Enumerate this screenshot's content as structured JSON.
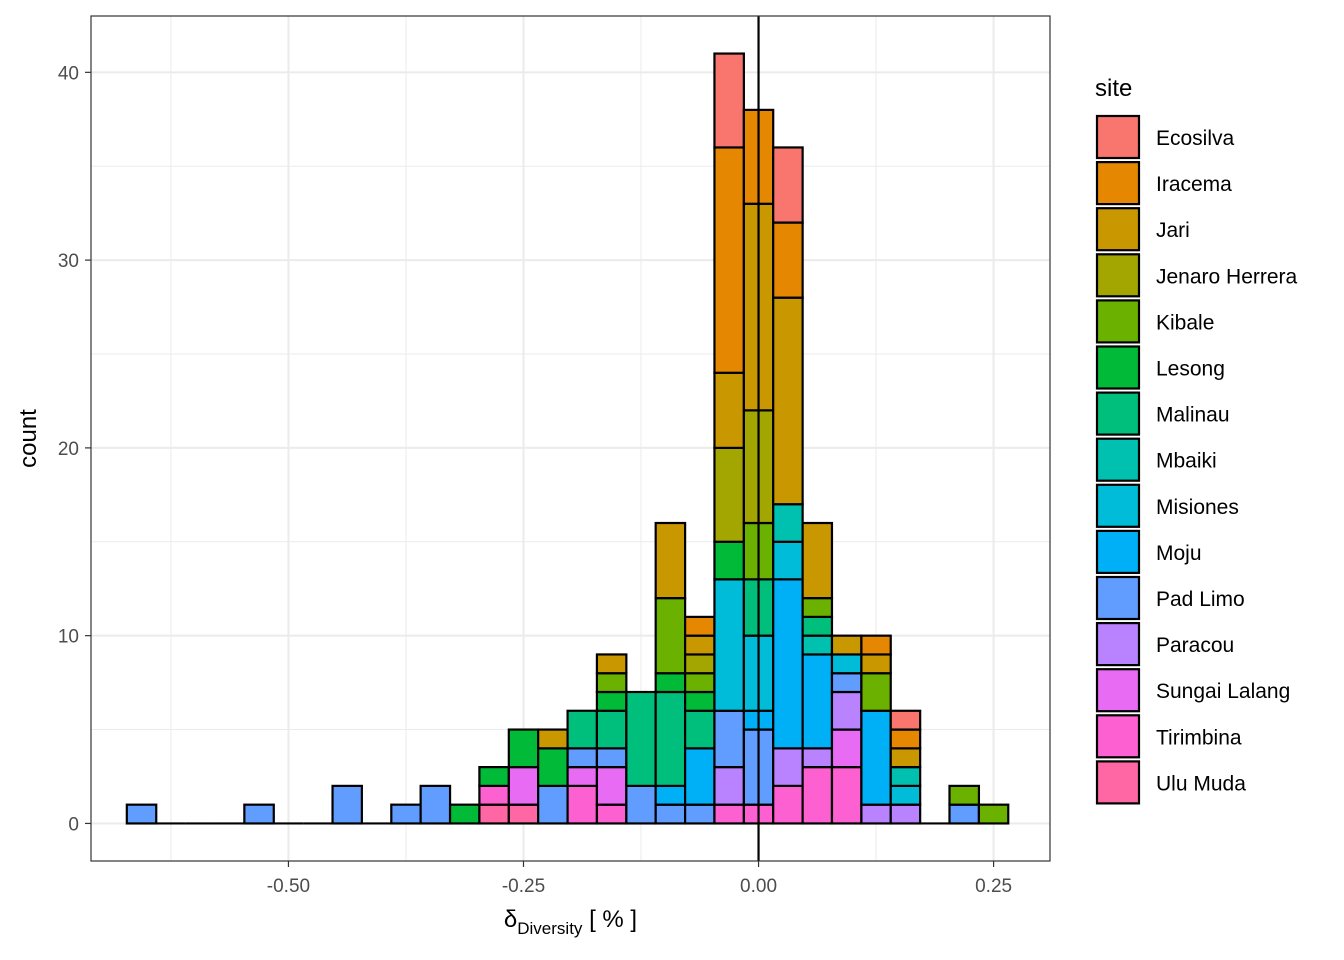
{
  "chart_data": {
    "type": "bar",
    "subtype": "stacked-histogram",
    "xlabel_main": "δ",
    "xlabel_sub": "Diversity",
    "xlabel_unit": " [ % ]",
    "ylabel": "count",
    "xlim": [
      -0.71,
      0.31
    ],
    "ylim": [
      -2,
      43
    ],
    "x_ticks": [
      -0.5,
      -0.25,
      0.0,
      0.25
    ],
    "x_tick_labels": [
      "-0.50",
      "-0.25",
      "0.00",
      "0.25"
    ],
    "y_ticks": [
      0,
      10,
      20,
      30,
      40
    ],
    "y_tick_labels": [
      "0",
      "10",
      "20",
      "30",
      "40"
    ],
    "grid": true,
    "vline_x": 0,
    "bin_width": 0.03125,
    "legend": {
      "title": "site",
      "position": "right"
    },
    "series": [
      {
        "name": "Ecosilva",
        "color": "#F8766D"
      },
      {
        "name": "Iracema",
        "color": "#E58700"
      },
      {
        "name": "Jari",
        "color": "#C99800"
      },
      {
        "name": "Jenaro Herrera",
        "color": "#A3A500"
      },
      {
        "name": "Kibale",
        "color": "#6BB100"
      },
      {
        "name": "Lesong",
        "color": "#00BA38"
      },
      {
        "name": "Malinau",
        "color": "#00BF7D"
      },
      {
        "name": "Mbaiki",
        "color": "#00C0AF"
      },
      {
        "name": "Misiones",
        "color": "#00BCD8"
      },
      {
        "name": "Moju",
        "color": "#00B0F6"
      },
      {
        "name": "Pad Limo",
        "color": "#619CFF"
      },
      {
        "name": "Paracou",
        "color": "#B983FF"
      },
      {
        "name": "Sungai Lalang",
        "color": "#E76BF3"
      },
      {
        "name": "Tirimbina",
        "color": "#FD61D1"
      },
      {
        "name": "Ulu Muda",
        "color": "#FF67A4"
      }
    ],
    "bins": [
      {
        "x0": -0.6719,
        "x1": -0.6406,
        "stack": [
          [
            "Pad Limo",
            1
          ]
        ]
      },
      {
        "x0": -0.6406,
        "x1": -0.6094,
        "stack": []
      },
      {
        "x0": -0.6094,
        "x1": -0.5781,
        "stack": []
      },
      {
        "x0": -0.5781,
        "x1": -0.5469,
        "stack": []
      },
      {
        "x0": -0.5469,
        "x1": -0.5156,
        "stack": [
          [
            "Pad Limo",
            1
          ]
        ]
      },
      {
        "x0": -0.5156,
        "x1": -0.4844,
        "stack": []
      },
      {
        "x0": -0.4844,
        "x1": -0.4531,
        "stack": []
      },
      {
        "x0": -0.4531,
        "x1": -0.4219,
        "stack": [
          [
            "Pad Limo",
            2
          ]
        ]
      },
      {
        "x0": -0.4219,
        "x1": -0.3906,
        "stack": []
      },
      {
        "x0": -0.3906,
        "x1": -0.3594,
        "stack": [
          [
            "Pad Limo",
            1
          ]
        ]
      },
      {
        "x0": -0.3594,
        "x1": -0.3281,
        "stack": [
          [
            "Pad Limo",
            2
          ]
        ]
      },
      {
        "x0": -0.3281,
        "x1": -0.2969,
        "stack": [
          [
            "Lesong",
            1
          ]
        ]
      },
      {
        "x0": -0.2969,
        "x1": -0.2656,
        "stack": [
          [
            "Ulu Muda",
            1
          ],
          [
            "Tirimbina",
            1
          ],
          [
            "Lesong",
            1
          ]
        ]
      },
      {
        "x0": -0.2656,
        "x1": -0.2344,
        "stack": [
          [
            "Ulu Muda",
            1
          ],
          [
            "Sungai Lalang",
            2
          ],
          [
            "Lesong",
            2
          ]
        ]
      },
      {
        "x0": -0.2344,
        "x1": -0.2031,
        "stack": [
          [
            "Pad Limo",
            2
          ],
          [
            "Lesong",
            2
          ],
          [
            "Jari",
            1
          ]
        ]
      },
      {
        "x0": -0.2031,
        "x1": -0.1719,
        "stack": [
          [
            "Tirimbina",
            2
          ],
          [
            "Sungai Lalang",
            1
          ],
          [
            "Pad Limo",
            1
          ],
          [
            "Malinau",
            2
          ]
        ]
      },
      {
        "x0": -0.1719,
        "x1": -0.1406,
        "stack": [
          [
            "Tirimbina",
            1
          ],
          [
            "Sungai Lalang",
            2
          ],
          [
            "Pad Limo",
            1
          ],
          [
            "Malinau",
            2
          ],
          [
            "Lesong",
            1
          ],
          [
            "Kibale",
            1
          ],
          [
            "Jari",
            1
          ]
        ]
      },
      {
        "x0": -0.1406,
        "x1": -0.1094,
        "stack": [
          [
            "Pad Limo",
            2
          ],
          [
            "Malinau",
            5
          ]
        ]
      },
      {
        "x0": -0.1094,
        "x1": -0.0781,
        "stack": [
          [
            "Pad Limo",
            1
          ],
          [
            "Moju",
            1
          ],
          [
            "Malinau",
            5
          ],
          [
            "Lesong",
            1
          ],
          [
            "Kibale",
            4
          ],
          [
            "Jari",
            4
          ]
        ]
      },
      {
        "x0": -0.0781,
        "x1": -0.0469,
        "stack": [
          [
            "Pad Limo",
            1
          ],
          [
            "Moju",
            3
          ],
          [
            "Malinau",
            2
          ],
          [
            "Lesong",
            1
          ],
          [
            "Kibale",
            1
          ],
          [
            "Jenaro Herrera",
            1
          ],
          [
            "Jari",
            1
          ],
          [
            "Iracema",
            1
          ]
        ]
      },
      {
        "x0": -0.0469,
        "x1": -0.0156,
        "stack": [
          [
            "Tirimbina",
            1
          ],
          [
            "Paracou",
            2
          ],
          [
            "Pad Limo",
            3
          ],
          [
            "Misiones",
            7
          ],
          [
            "Lesong",
            2
          ],
          [
            "Jenaro Herrera",
            5
          ],
          [
            "Jari",
            4
          ],
          [
            "Iracema",
            12
          ],
          [
            "Ecosilva",
            5
          ]
        ]
      },
      {
        "x0": -0.0156,
        "x1": 0.0156,
        "stack": [
          [
            "Tirimbina",
            1
          ],
          [
            "Pad Limo",
            4
          ],
          [
            "Moju",
            1
          ],
          [
            "Misiones",
            4
          ],
          [
            "Malinau",
            3
          ],
          [
            "Kibale",
            3
          ],
          [
            "Jenaro Herrera",
            6
          ],
          [
            "Jari",
            11
          ],
          [
            "Iracema",
            5
          ]
        ]
      },
      {
        "x0": 0.0156,
        "x1": 0.0469,
        "stack": [
          [
            "Tirimbina",
            2
          ],
          [
            "Paracou",
            2
          ],
          [
            "Moju",
            9
          ],
          [
            "Misiones",
            2
          ],
          [
            "Mbaiki",
            2
          ],
          [
            "Jari",
            11
          ],
          [
            "Iracema",
            4
          ],
          [
            "Ecosilva",
            4
          ]
        ]
      },
      {
        "x0": 0.0469,
        "x1": 0.0781,
        "stack": [
          [
            "Tirimbina",
            3
          ],
          [
            "Paracou",
            1
          ],
          [
            "Moju",
            5
          ],
          [
            "Mbaiki",
            1
          ],
          [
            "Malinau",
            1
          ],
          [
            "Kibale",
            1
          ],
          [
            "Jari",
            4
          ]
        ]
      },
      {
        "x0": 0.0781,
        "x1": 0.1094,
        "stack": [
          [
            "Tirimbina",
            3
          ],
          [
            "Sungai Lalang",
            2
          ],
          [
            "Paracou",
            2
          ],
          [
            "Pad Limo",
            1
          ],
          [
            "Misiones",
            1
          ],
          [
            "Jari",
            1
          ]
        ]
      },
      {
        "x0": 0.1094,
        "x1": 0.1406,
        "stack": [
          [
            "Paracou",
            1
          ],
          [
            "Moju",
            5
          ],
          [
            "Kibale",
            2
          ],
          [
            "Jari",
            1
          ],
          [
            "Iracema",
            1
          ]
        ]
      },
      {
        "x0": 0.1406,
        "x1": 0.1719,
        "stack": [
          [
            "Paracou",
            1
          ],
          [
            "Misiones",
            1
          ],
          [
            "Mbaiki",
            1
          ],
          [
            "Jari",
            1
          ],
          [
            "Iracema",
            1
          ],
          [
            "Ecosilva",
            1
          ]
        ]
      },
      {
        "x0": 0.1719,
        "x1": 0.2031,
        "stack": []
      },
      {
        "x0": 0.2031,
        "x1": 0.2344,
        "stack": [
          [
            "Pad Limo",
            1
          ],
          [
            "Kibale",
            1
          ]
        ]
      },
      {
        "x0": 0.2344,
        "x1": 0.2656,
        "stack": [
          [
            "Kibale",
            1
          ]
        ]
      }
    ]
  }
}
